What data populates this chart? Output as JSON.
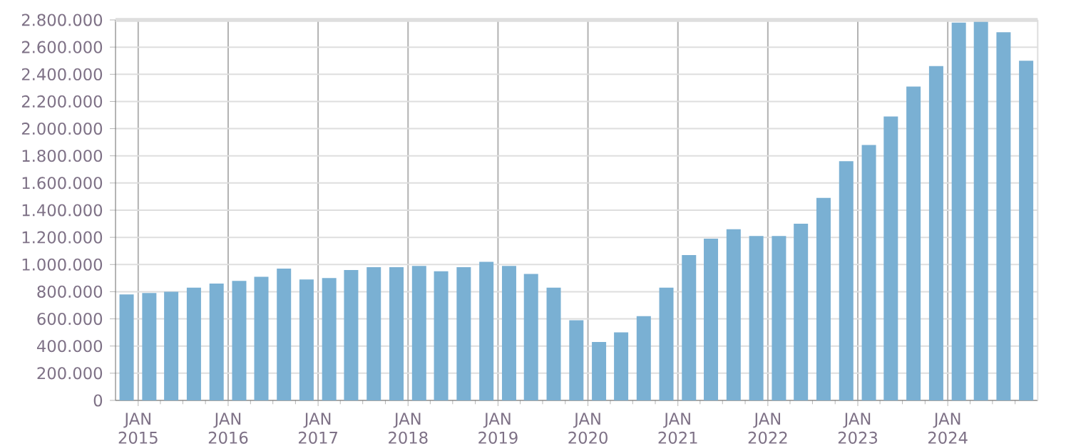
{
  "chart_data": {
    "type": "bar",
    "color": "#7ab0d3",
    "grid": true,
    "x": [
      "2014-11-15",
      "2015-02-15",
      "2015-05-15",
      "2015-08-15",
      "2015-11-15",
      "2016-02-15",
      "2016-05-15",
      "2016-08-15",
      "2016-11-15",
      "2017-02-15",
      "2017-05-15",
      "2017-08-15",
      "2017-11-15",
      "2018-02-15",
      "2018-05-15",
      "2018-08-15",
      "2018-11-15",
      "2019-02-15",
      "2019-05-15",
      "2019-08-15",
      "2019-11-15",
      "2020-02-15",
      "2020-05-15",
      "2020-08-15",
      "2020-11-15",
      "2021-02-15",
      "2021-05-15",
      "2021-08-15",
      "2021-11-15",
      "2022-02-15",
      "2022-05-15",
      "2022-08-15",
      "2022-11-15",
      "2023-02-15",
      "2023-05-15",
      "2023-08-15",
      "2023-11-15",
      "2024-02-15",
      "2024-05-15",
      "2024-08-15",
      "2024-11-15"
    ],
    "values": [
      780000,
      790000,
      800000,
      830000,
      860000,
      880000,
      910000,
      970000,
      890000,
      900000,
      960000,
      980000,
      980000,
      990000,
      950000,
      980000,
      1020000,
      990000,
      930000,
      830000,
      590000,
      430000,
      500000,
      620000,
      830000,
      1070000,
      1190000,
      1260000,
      1210000,
      1210000,
      1300000,
      1490000,
      1760000,
      1880000,
      2090000,
      2310000,
      2460000,
      2780000,
      2800000,
      2710000,
      2500000
    ],
    "xlim": [
      "2014-10-01",
      "2025-01-01"
    ],
    "xticks": [
      {
        "value": "2015-01-01",
        "label": "JAN 2015"
      },
      {
        "value": "2015-04-01",
        "label": null
      },
      {
        "value": "2015-07-01",
        "label": null
      },
      {
        "value": "2015-10-01",
        "label": null
      },
      {
        "value": "2016-01-01",
        "label": "JAN 2016"
      },
      {
        "value": "2016-04-01",
        "label": null
      },
      {
        "value": "2016-07-01",
        "label": null
      },
      {
        "value": "2016-10-01",
        "label": null
      },
      {
        "value": "2017-01-01",
        "label": "JAN 2017"
      },
      {
        "value": "2017-04-01",
        "label": null
      },
      {
        "value": "2017-07-01",
        "label": null
      },
      {
        "value": "2017-10-01",
        "label": null
      },
      {
        "value": "2018-01-01",
        "label": "JAN 2018"
      },
      {
        "value": "2018-04-01",
        "label": null
      },
      {
        "value": "2018-07-01",
        "label": null
      },
      {
        "value": "2018-10-01",
        "label": null
      },
      {
        "value": "2019-01-01",
        "label": "JAN 2019"
      },
      {
        "value": "2019-04-01",
        "label": null
      },
      {
        "value": "2019-07-01",
        "label": null
      },
      {
        "value": "2019-10-01",
        "label": null
      },
      {
        "value": "2020-01-01",
        "label": "JAN 2020"
      },
      {
        "value": "2020-04-01",
        "label": null
      },
      {
        "value": "2020-07-01",
        "label": null
      },
      {
        "value": "2020-10-01",
        "label": null
      },
      {
        "value": "2021-01-01",
        "label": "JAN 2021"
      },
      {
        "value": "2021-04-01",
        "label": null
      },
      {
        "value": "2021-07-01",
        "label": null
      },
      {
        "value": "2021-10-01",
        "label": null
      },
      {
        "value": "2022-01-01",
        "label": "JAN 2022"
      },
      {
        "value": "2022-04-01",
        "label": null
      },
      {
        "value": "2022-07-01",
        "label": null
      },
      {
        "value": "2022-10-01",
        "label": null
      },
      {
        "value": "2023-01-01",
        "label": "JAN 2023"
      },
      {
        "value": "2023-04-01",
        "label": null
      },
      {
        "value": "2023-07-01",
        "label": null
      },
      {
        "value": "2023-10-01",
        "label": null
      },
      {
        "value": "2024-01-01",
        "label": "JAN 2024"
      },
      {
        "value": "2024-04-01",
        "label": null
      },
      {
        "value": "2024-07-01",
        "label": null
      },
      {
        "value": "2024-10-01",
        "label": null
      }
    ],
    "ylim": [
      0,
      2800000
    ],
    "yticks": [
      0,
      {
        "value": 200000,
        "label": "200.000"
      },
      {
        "value": 400000,
        "label": "400.000"
      },
      {
        "value": 600000,
        "label": "600.000"
      },
      {
        "value": 800000,
        "label": "800.000"
      },
      {
        "value": 1000000,
        "label": "1.000.000"
      },
      {
        "value": 1200000,
        "label": "1.200.000"
      },
      {
        "value": 1400000,
        "label": "1.400.000"
      },
      {
        "value": 1600000,
        "label": "1.600.000"
      },
      {
        "value": 1800000,
        "label": "1.800.000"
      },
      {
        "value": 2000000,
        "label": "2.000.000"
      },
      {
        "value": 2200000,
        "label": "2.200.000"
      },
      {
        "value": 2400000,
        "label": "2.400.000"
      },
      {
        "value": 2600000,
        "label": "2.600.000"
      },
      {
        "value": 2800000,
        "label": "2.800.000"
      }
    ]
  }
}
